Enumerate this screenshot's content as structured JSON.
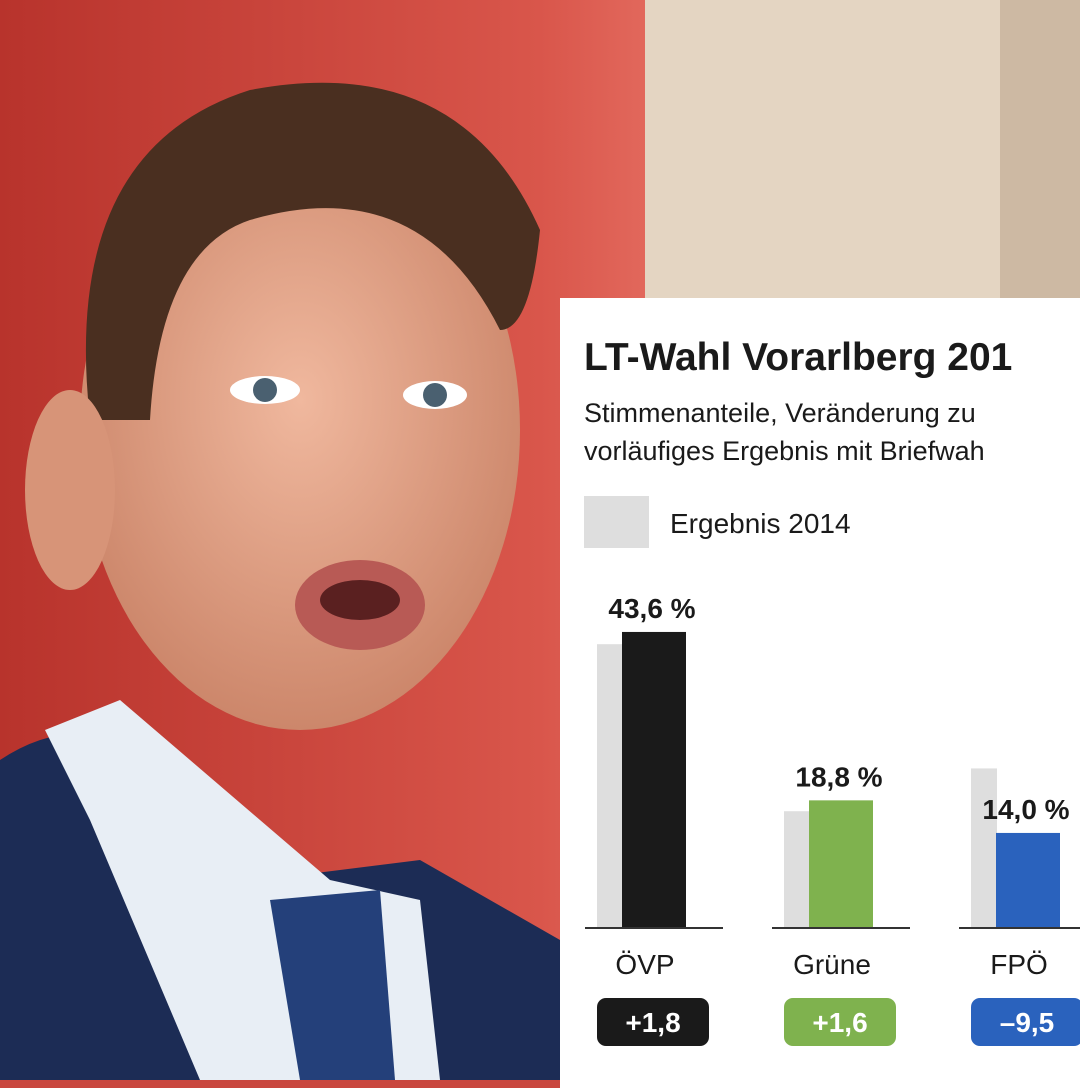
{
  "photo": {
    "description_icon": "person-photo"
  },
  "chart_data": {
    "type": "bar",
    "title": "LT-Wahl Vorarlberg 201",
    "subtitle_lines": [
      "Stimmenanteile, Veränderung zu",
      "vorläufiges Ergebnis mit Briefwah"
    ],
    "legend": {
      "label": "Ergebnis 2014",
      "color": "#dedede",
      "placement": "top-left"
    },
    "categories": [
      "ÖVP",
      "Grüne",
      "FPÖ"
    ],
    "series": [
      {
        "name": "Ergebnis 2014",
        "values": [
          41.8,
          17.2,
          23.5
        ],
        "color": "#dedede"
      },
      {
        "values": [
          43.6,
          18.8,
          14.0
        ],
        "colors": [
          "#1a1a1a",
          "#7fb24e",
          "#2a62bd"
        ]
      }
    ],
    "value_labels": [
      "43,6 %",
      "18,8 %",
      "14,0 %"
    ],
    "change_labels": [
      "+1,8",
      "+1,6",
      "–9,5"
    ],
    "ylim": [
      0,
      50
    ],
    "grid": false
  }
}
